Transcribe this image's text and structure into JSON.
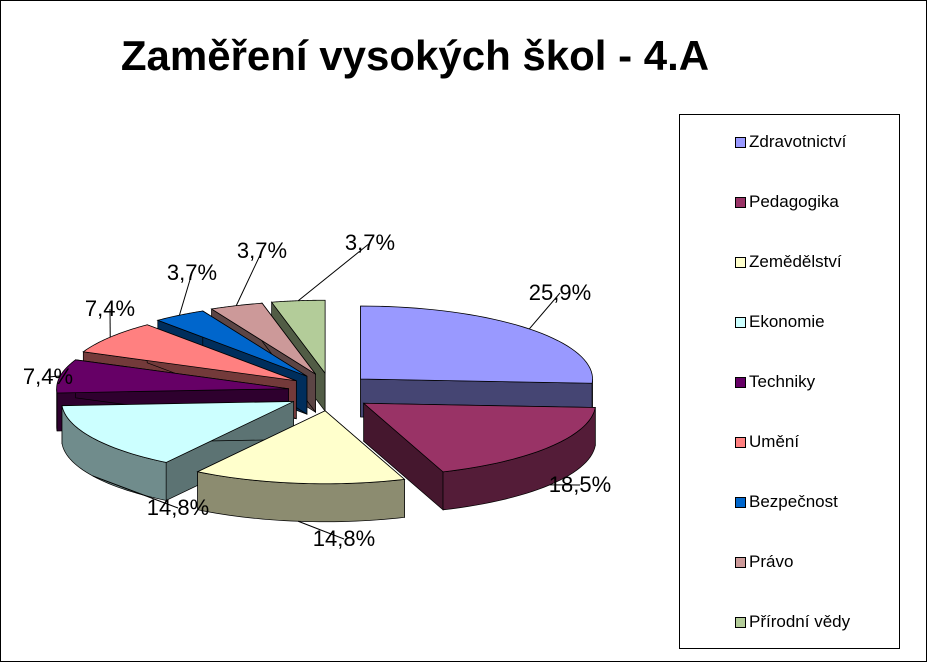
{
  "chart_data": {
    "type": "pie",
    "title": "Zaměření vysokých škol - 4.A",
    "legend_position": "right",
    "slices": [
      {
        "label": "Zdravotnictví",
        "value": 25.9,
        "value_label": "25,9%",
        "color": "#9999FF"
      },
      {
        "label": "Pedagogika",
        "value": 18.5,
        "value_label": "18,5%",
        "color": "#993366"
      },
      {
        "label": "Zemědělství",
        "value": 14.8,
        "value_label": "14,8%",
        "color": "#FFFFCC"
      },
      {
        "label": "Ekonomie",
        "value": 14.8,
        "value_label": "14,8%",
        "color": "#CCFFFF"
      },
      {
        "label": "Techniky",
        "value": 7.4,
        "value_label": "7,4%",
        "color": "#660066"
      },
      {
        "label": "Umění",
        "value": 7.4,
        "value_label": "7,4%",
        "color": "#FF8080"
      },
      {
        "label": "Bezpečnost",
        "value": 3.7,
        "value_label": "3,7%",
        "color": "#0066CC"
      },
      {
        "label": "Právo",
        "value": 3.7,
        "value_label": "3,7%",
        "color": "#CC9999"
      },
      {
        "label": "Přírodní vědy",
        "value": 3.7,
        "value_label": "3,7%",
        "color": "#B3CC99"
      }
    ]
  }
}
